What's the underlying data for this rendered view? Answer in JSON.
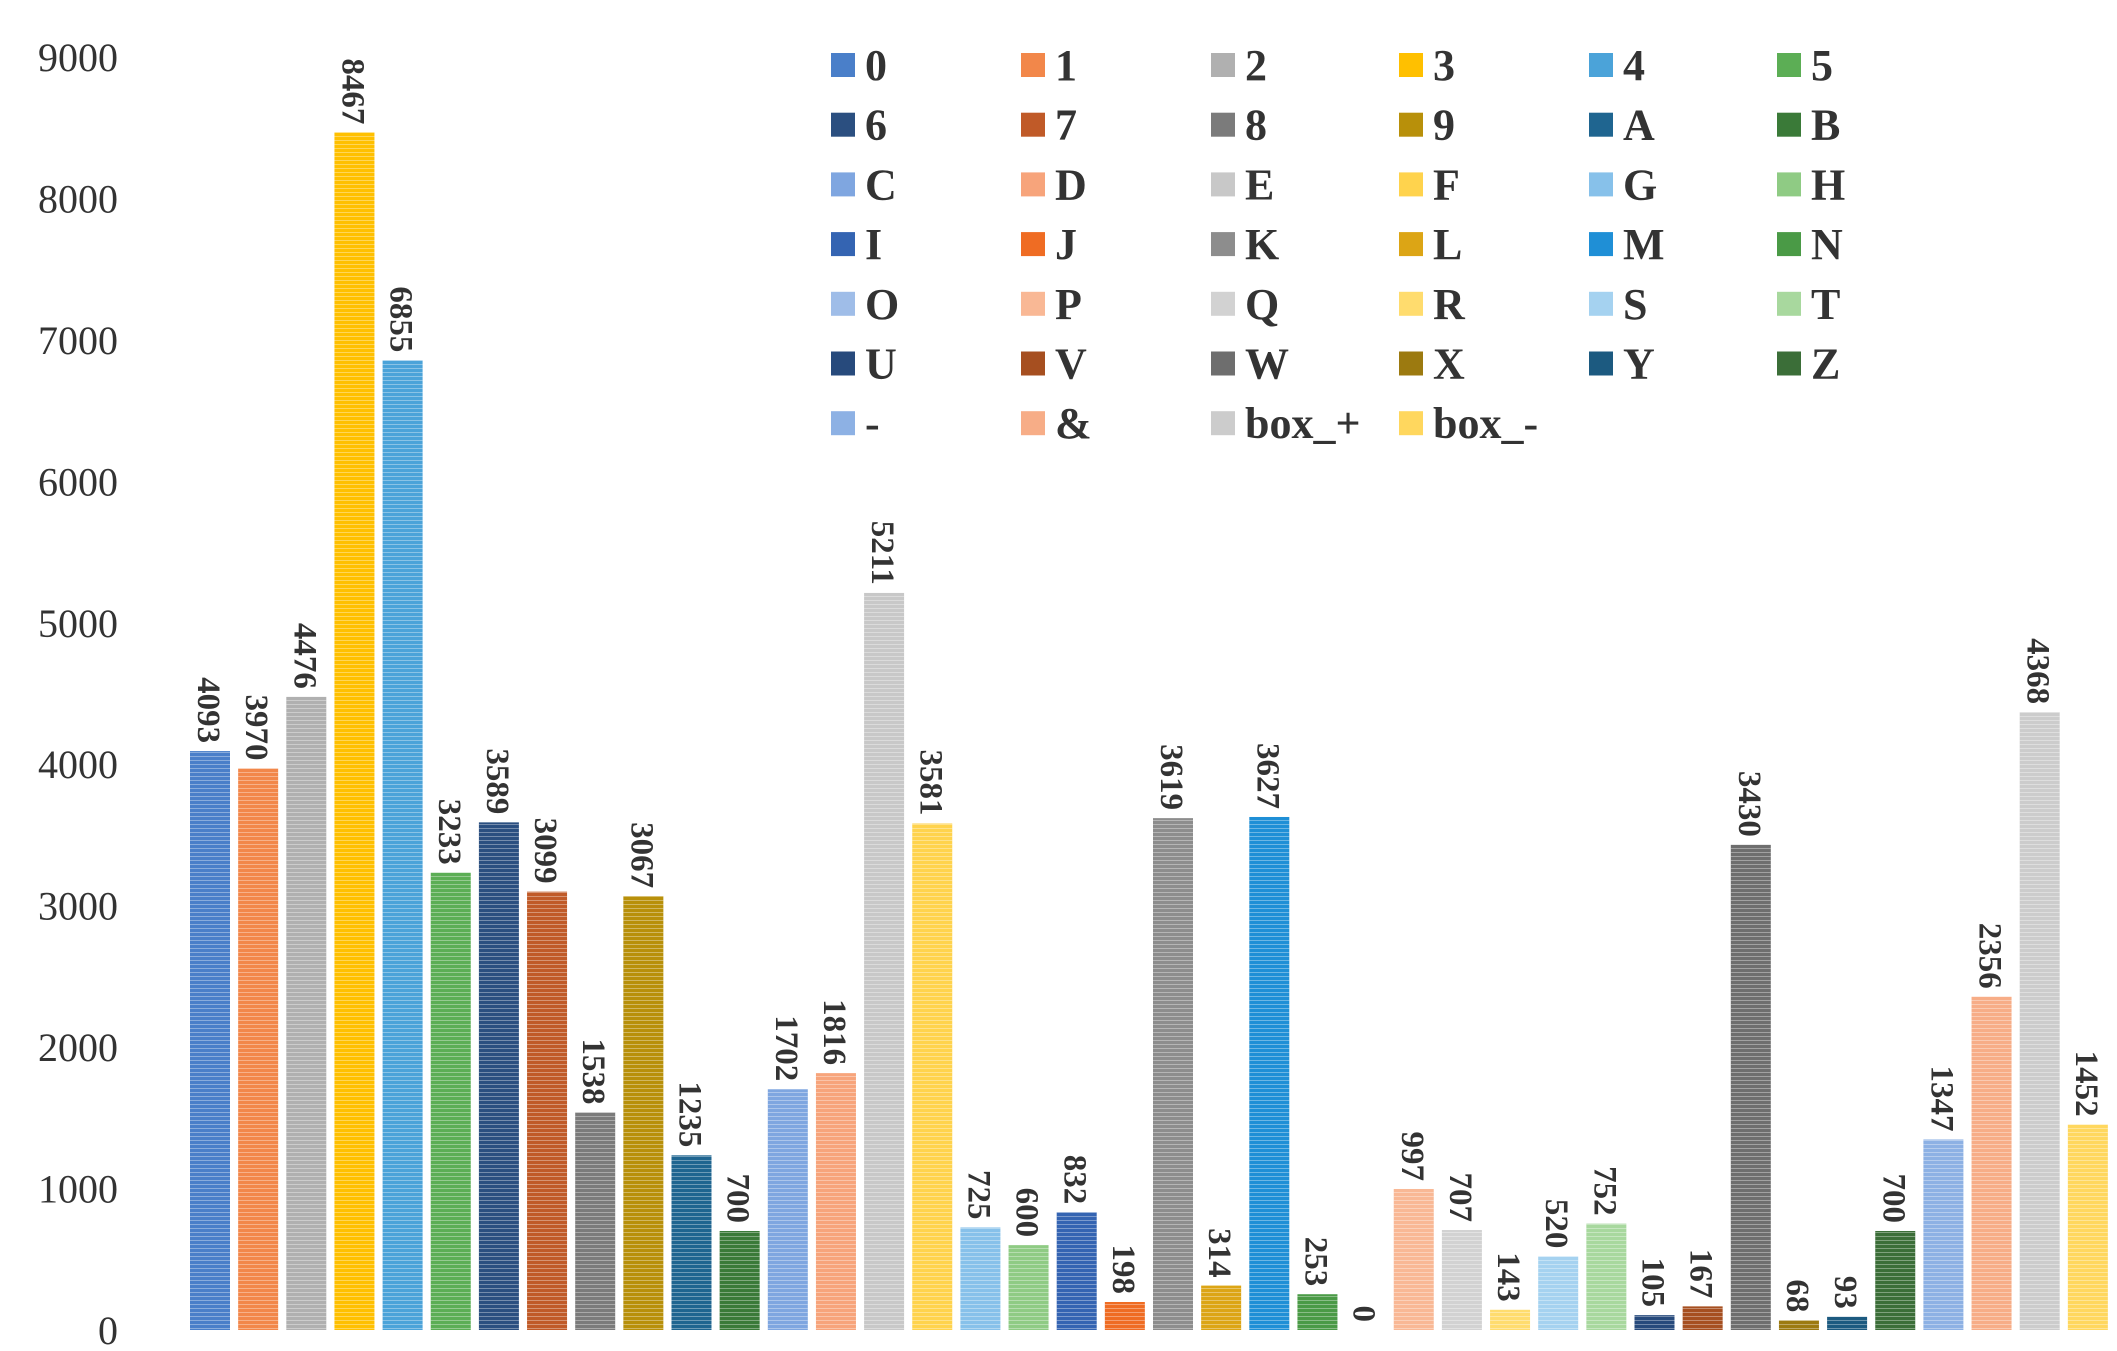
{
  "chart_data": {
    "type": "bar",
    "title": "",
    "xlabel": "",
    "ylabel": "",
    "ylim": [
      0,
      9000
    ],
    "yticks": [
      0,
      1000,
      2000,
      3000,
      4000,
      5000,
      6000,
      7000,
      8000,
      9000
    ],
    "grid": false,
    "legend_position": "top-right",
    "categories": [
      "0",
      "1",
      "2",
      "3",
      "4",
      "5",
      "6",
      "7",
      "8",
      "9",
      "A",
      "B",
      "C",
      "D",
      "E",
      "F",
      "G",
      "H",
      "I",
      "J",
      "K",
      "L",
      "M",
      "N",
      "O",
      "P",
      "Q",
      "R",
      "S",
      "T",
      "U",
      "V",
      "W",
      "X",
      "Y",
      "Z",
      "-",
      "&",
      "box_+",
      "box_-"
    ],
    "values": [
      4093,
      3970,
      4476,
      8467,
      6855,
      3233,
      3589,
      3099,
      1538,
      3067,
      1235,
      700,
      1702,
      1816,
      5211,
      3581,
      725,
      600,
      832,
      198,
      3619,
      314,
      3627,
      253,
      0,
      997,
      707,
      143,
      520,
      752,
      105,
      167,
      3430,
      68,
      93,
      700,
      1347,
      2356,
      4368,
      1452
    ],
    "colors": [
      "#4a7fc9",
      "#f2874a",
      "#b0b0b0",
      "#ffc000",
      "#4ba3d9",
      "#5cae55",
      "#2b4f80",
      "#c05a28",
      "#7b7b7b",
      "#b8900a",
      "#1f6590",
      "#3a7a38",
      "#7fa6e0",
      "#f7a47b",
      "#c8c8c8",
      "#ffd34d",
      "#87c1ea",
      "#8fcb84",
      "#3464b2",
      "#ef6c23",
      "#8d8d8d",
      "#dca515",
      "#1f8fd6",
      "#4a9a46",
      "#9fbde8",
      "#f9b895",
      "#d2d2d2",
      "#ffdc6e",
      "#a5d2f0",
      "#a8d89e",
      "#274a7c",
      "#a64f20",
      "#6e6e6e",
      "#9c7a10",
      "#1c5a80",
      "#3b6e38",
      "#8db1e4",
      "#f7ad87",
      "#cccccc",
      "#ffd75e"
    ]
  }
}
